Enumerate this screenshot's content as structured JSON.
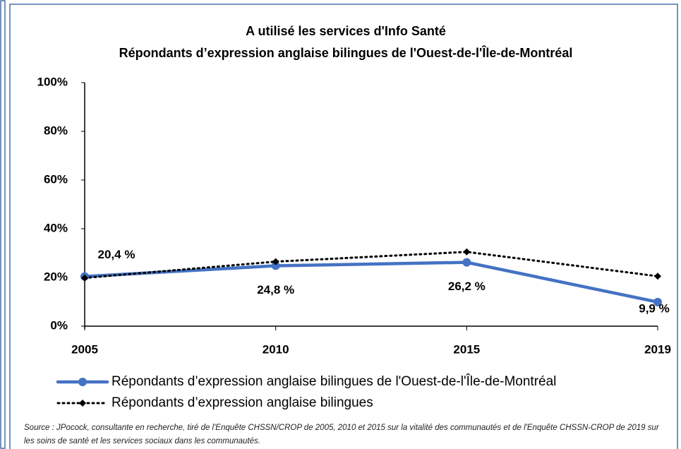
{
  "chart_data": {
    "type": "line",
    "title": "A utilisé les services d'Info Santé",
    "subtitle": "Répondants d’expression anglaise bilingues de l'Ouest-de-l'Île-de-Montréal",
    "categories": [
      "2005",
      "2010",
      "2015",
      "2019"
    ],
    "series": [
      {
        "name": "Répondants d’expression anglaise bilingues de l'Ouest-de-l'Île-de-Montréal",
        "color": "#4472c4",
        "values": [
          20.4,
          24.8,
          26.2,
          9.9
        ],
        "value_labels": [
          "20,4 %",
          "24,8 %",
          "26,2 %",
          "9,9 %"
        ]
      },
      {
        "name": "Répondants d’expression anglaise bilingues",
        "color": "#000000",
        "values": [
          19.8,
          26.5,
          30.5,
          20.5
        ]
      }
    ],
    "ylim": [
      0,
      100
    ],
    "yticks": [
      {
        "value": 0,
        "label": "0%"
      },
      {
        "value": 20,
        "label": "20%"
      },
      {
        "value": 40,
        "label": "40%"
      },
      {
        "value": 60,
        "label": "60%"
      },
      {
        "value": 80,
        "label": "80%"
      },
      {
        "value": 100,
        "label": "100%"
      }
    ],
    "grid": false,
    "source": "Source : JPocock, consultante en recherche, tiré de l'Enquête CHSSN/CROP de 2005, 2010 et 2015 sur la vitalité des communautés et de l'Enquête CHSSN-CROP de 2019 sur les soins de santé et les services sociaux dans les communautés."
  }
}
